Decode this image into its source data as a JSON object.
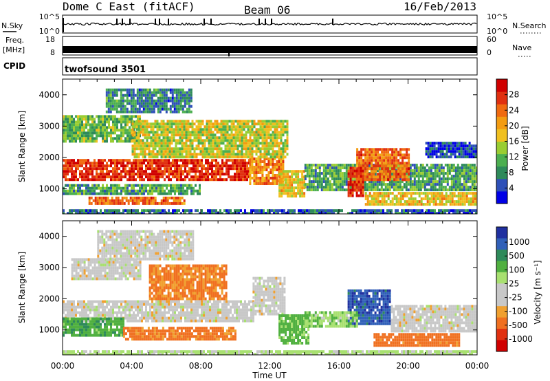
{
  "header": {
    "title": "Dome C East (fitACF)",
    "beam": "Beam 06",
    "date": "16/Feb/2013"
  },
  "strips": {
    "nsky": {
      "label": "N.Sky",
      "ticks": [
        "10^5",
        "10^0"
      ]
    },
    "nsearch": {
      "label": "N.Search",
      "ticks": [
        "10^5",
        "10^0"
      ]
    },
    "freq": {
      "label_line1": "Freq.",
      "label_line2": "[MHz]",
      "ticks": [
        "18",
        "8"
      ]
    },
    "nave": {
      "label": "Nave",
      "ticks": [
        "60",
        "0"
      ]
    },
    "cpid": {
      "label": "CPID",
      "value": "twofsound 3501"
    }
  },
  "chart_data": [
    {
      "type": "heatmap",
      "ylabel": "Slant Range [km]",
      "ylim": [
        200,
        4500
      ],
      "yticks": [
        "4000",
        "3000",
        "2000",
        "1000"
      ],
      "colorbar": {
        "label": "Power [dB]",
        "ticks": [
          "28",
          "24",
          "20",
          "16",
          "12",
          "8",
          "4"
        ],
        "range": [
          0,
          32
        ],
        "colors": [
          "#0000e6",
          "#2e50b8",
          "#2e8a5a",
          "#4caf50",
          "#9acd32",
          "#f0c020",
          "#f39c12",
          "#f06a10",
          "#e03010",
          "#d00000"
        ]
      },
      "regions": [
        {
          "t": [
            0.0,
            10.8
          ],
          "r": [
            1250,
            1950
          ],
          "v": 28
        },
        {
          "t": [
            10.8,
            12.8
          ],
          "r": [
            1200,
            2000
          ],
          "v": 22
        },
        {
          "t": [
            0.0,
            8.0
          ],
          "r": [
            850,
            1150
          ],
          "v": 10
        },
        {
          "t": [
            1.5,
            7.0
          ],
          "r": [
            550,
            750
          ],
          "v": 24
        },
        {
          "t": [
            0.0,
            4.5
          ],
          "r": [
            2500,
            3350
          ],
          "v": 12
        },
        {
          "t": [
            2.5,
            7.5
          ],
          "r": [
            3450,
            4200
          ],
          "v": 8
        },
        {
          "t": [
            4.0,
            13.0
          ],
          "r": [
            2000,
            3200
          ],
          "v": 16
        },
        {
          "t": [
            12.5,
            14.0
          ],
          "r": [
            800,
            1600
          ],
          "v": 18
        },
        {
          "t": [
            14.0,
            24.0
          ],
          "r": [
            1000,
            1800
          ],
          "v": 10
        },
        {
          "t": [
            17.0,
            20.0
          ],
          "r": [
            1300,
            2300
          ],
          "v": 24
        },
        {
          "t": [
            16.5,
            17.4
          ],
          "r": [
            800,
            1700
          ],
          "v": 28
        },
        {
          "t": [
            17.5,
            24.0
          ],
          "r": [
            500,
            900
          ],
          "v": 18
        },
        {
          "t": [
            0.0,
            24.0
          ],
          "r": [
            200,
            350
          ],
          "v": 6
        },
        {
          "t": [
            21.0,
            24.0
          ],
          "r": [
            2000,
            2500
          ],
          "v": 4
        }
      ]
    },
    {
      "type": "heatmap",
      "xlabel": "Time UT",
      "ylabel": "Slant Range [km]",
      "xlim": [
        0,
        24
      ],
      "ylim": [
        200,
        4500
      ],
      "xticks": [
        "00:00",
        "04:00",
        "08:00",
        "12:00",
        "16:00",
        "20:00",
        "00:00"
      ],
      "yticks": [
        "4000",
        "3000",
        "2000",
        "1000"
      ],
      "colorbar": {
        "label": "Velocity [m s⁻¹]",
        "ticks": [
          "1000",
          "500",
          "100",
          "25",
          "-25",
          "-100",
          "-500",
          "-1000"
        ],
        "colors": [
          "#2030a0",
          "#3060b8",
          "#2e8a5a",
          "#50b040",
          "#a8e070",
          "#c8c8c8",
          "#c8c8c8",
          "#f0a030",
          "#f07020",
          "#e03010",
          "#d00000"
        ]
      },
      "regions": [
        {
          "t": [
            0.0,
            11.0
          ],
          "r": [
            1250,
            1950
          ],
          "v": 0
        },
        {
          "t": [
            11.0,
            12.8
          ],
          "r": [
            1500,
            2700
          ],
          "v": 0
        },
        {
          "t": [
            0.0,
            3.5
          ],
          "r": [
            800,
            1400
          ],
          "v": 200
        },
        {
          "t": [
            3.5,
            10.0
          ],
          "r": [
            700,
            1100
          ],
          "v": -150
        },
        {
          "t": [
            0.5,
            4.5
          ],
          "r": [
            2600,
            3300
          ],
          "v": 0
        },
        {
          "t": [
            5.0,
            9.5
          ],
          "r": [
            2000,
            3100
          ],
          "v": -120
        },
        {
          "t": [
            2.0,
            7.5
          ],
          "r": [
            3300,
            4200
          ],
          "v": 0
        },
        {
          "t": [
            12.5,
            14.2
          ],
          "r": [
            600,
            1500
          ],
          "v": 150
        },
        {
          "t": [
            16.5,
            19.0
          ],
          "r": [
            1200,
            2300
          ],
          "v": 800
        },
        {
          "t": [
            19.0,
            24.0
          ],
          "r": [
            1000,
            1800
          ],
          "v": 0
        },
        {
          "t": [
            14.0,
            17.0
          ],
          "r": [
            1100,
            1600
          ],
          "v": 80
        },
        {
          "t": [
            18.0,
            23.0
          ],
          "r": [
            500,
            900
          ],
          "v": -200
        },
        {
          "t": [
            0.0,
            24.0
          ],
          "r": [
            200,
            350
          ],
          "v": 50
        }
      ]
    }
  ]
}
